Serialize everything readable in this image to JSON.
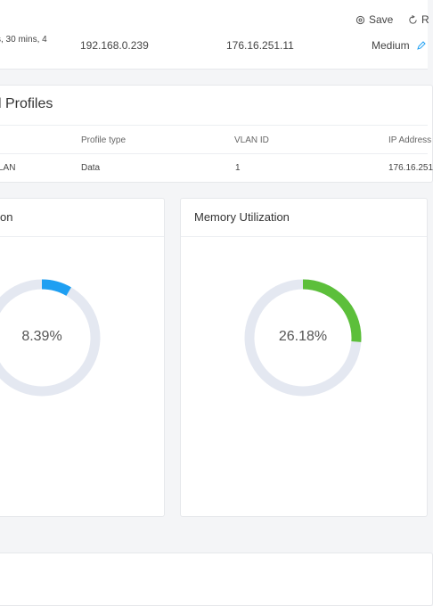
{
  "toolbar": {
    "save_label": "Save",
    "refresh_label": "R"
  },
  "info_row": {
    "uptime_fragment": "s, 30 mins, 4",
    "ip_1": "192.168.0.239",
    "ip_2": "176.16.251.11",
    "level": "Medium"
  },
  "profiles": {
    "title": "l Profiles",
    "columns": [
      "",
      "Profile type",
      "VLAN ID",
      "IP Address"
    ],
    "rows": [
      {
        "name": "LAN",
        "type": "Data",
        "vlan": "1",
        "ip": "176.16.251"
      }
    ]
  },
  "cpu": {
    "title": "on",
    "value_label": "8.39%",
    "value": 8.39,
    "color": "#1e9ff2"
  },
  "memory": {
    "title": "Memory Utilization",
    "value_label": "26.18%",
    "value": 26.18,
    "color": "#5cbf3a"
  },
  "colors": {
    "track": "#e4e8f1",
    "accent_blue": "#1e9ff2",
    "accent_green": "#5cbf3a"
  }
}
